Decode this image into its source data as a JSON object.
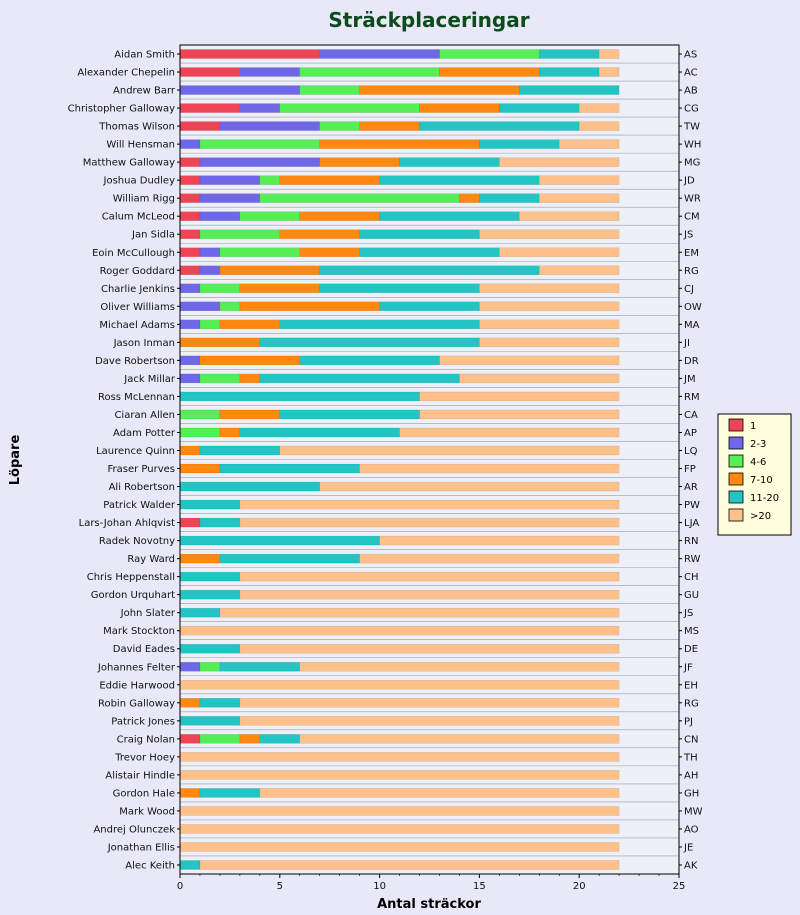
{
  "chart_data": {
    "type": "bar",
    "orientation": "horizontal",
    "stacked": true,
    "title": "Sträckplaceringar",
    "xlabel": "Antal sträckor",
    "ylabel": "Löpare",
    "xlim": [
      0,
      25
    ],
    "xticks": [
      "0",
      "5",
      "10",
      "15",
      "20",
      "25"
    ],
    "grid": true,
    "legend_position": "right",
    "categories": [
      "Aidan Smith",
      "Alexander Chepelin",
      "Andrew Barr",
      "Christopher Galloway",
      "Thomas Wilson",
      "Will Hensman",
      "Matthew Galloway",
      "Joshua Dudley",
      "William Rigg",
      "Calum McLeod",
      "Jan Sidla",
      "Eoin McCullough",
      "Roger Goddard",
      "Charlie Jenkins",
      "Oliver Williams",
      "Michael Adams",
      "Jason Inman",
      "Dave Robertson",
      "Jack Millar",
      "Ross McLennan",
      "Ciaran Allen",
      "Adam Potter",
      "Laurence Quinn",
      "Fraser Purves",
      "Ali Robertson",
      "Patrick Walder",
      "Lars-Johan Ahlqvist",
      "Radek Novotny",
      "Ray Ward",
      "Chris Heppenstall",
      "Gordon Urquhart",
      "John Slater",
      "Mark Stockton",
      "David Eades",
      "Johannes Felter",
      "Eddie Harwood",
      "Robin Galloway",
      "Patrick Jones",
      "Craig Nolan",
      "Trevor Hoey",
      "Alistair Hindle",
      "Gordon Hale",
      "Mark Wood",
      "Andrej Olunczek",
      "Jonathan Ellis",
      "Alec Keith"
    ],
    "right_labels": [
      "AS",
      "AC",
      "AB",
      "CG",
      "TW",
      "WH",
      "MG",
      "JD",
      "WR",
      "CM",
      "JS",
      "EM",
      "RG",
      "CJ",
      "OW",
      "MA",
      "JI",
      "DR",
      "JM",
      "RM",
      "CA",
      "AP",
      "LQ",
      "FP",
      "AR",
      "PW",
      "LJA",
      "RN",
      "RW",
      "CH",
      "GU",
      "JS",
      "MS",
      "DE",
      "JF",
      "EH",
      "RG",
      "PJ",
      "CN",
      "TH",
      "AH",
      "GH",
      "MW",
      "AO",
      "JE",
      "AK"
    ],
    "series": [
      {
        "name": "1",
        "color": "#ee4455",
        "values": [
          7,
          3,
          0,
          3,
          2,
          0,
          1,
          1,
          1,
          1,
          1,
          1,
          1,
          0,
          0,
          0,
          0,
          0,
          0,
          0,
          0,
          0,
          0,
          0,
          0,
          0,
          1,
          0,
          0,
          0,
          0,
          0,
          0,
          0,
          0,
          0,
          0,
          0,
          1,
          0,
          0,
          0,
          0,
          0,
          0,
          0
        ]
      },
      {
        "name": "2-3",
        "color": "#7066e8",
        "values": [
          6,
          3,
          6,
          2,
          5,
          1,
          6,
          3,
          3,
          2,
          0,
          1,
          1,
          1,
          2,
          1,
          0,
          1,
          1,
          0,
          0,
          0,
          0,
          0,
          0,
          0,
          0,
          0,
          0,
          0,
          0,
          0,
          0,
          0,
          1,
          0,
          0,
          0,
          0,
          0,
          0,
          0,
          0,
          0,
          0,
          0
        ]
      },
      {
        "name": "4-6",
        "color": "#55ee55",
        "values": [
          5,
          7,
          3,
          7,
          2,
          6,
          0,
          1,
          10,
          3,
          4,
          4,
          0,
          2,
          1,
          1,
          0,
          0,
          2,
          0,
          2,
          2,
          0,
          0,
          0,
          0,
          0,
          0,
          0,
          0,
          0,
          0,
          0,
          0,
          1,
          0,
          0,
          0,
          2,
          0,
          0,
          0,
          0,
          0,
          0,
          0
        ]
      },
      {
        "name": "7-10",
        "color": "#ff8811",
        "values": [
          0,
          5,
          8,
          4,
          3,
          8,
          4,
          5,
          1,
          4,
          4,
          3,
          5,
          4,
          7,
          3,
          4,
          5,
          1,
          0,
          3,
          1,
          1,
          2,
          0,
          0,
          0,
          0,
          2,
          0,
          0,
          0,
          0,
          0,
          0,
          0,
          1,
          0,
          1,
          0,
          0,
          1,
          0,
          0,
          0,
          0
        ]
      },
      {
        "name": "11-20",
        "color": "#22c4c4",
        "values": [
          3,
          3,
          5,
          4,
          8,
          4,
          5,
          8,
          3,
          7,
          6,
          7,
          11,
          8,
          5,
          10,
          11,
          7,
          10,
          12,
          7,
          8,
          4,
          7,
          7,
          3,
          2,
          10,
          7,
          3,
          3,
          2,
          0,
          3,
          4,
          0,
          2,
          3,
          2,
          0,
          0,
          3,
          0,
          0,
          0,
          1
        ]
      },
      {
        "name": ">20",
        "color": "#ffc08a",
        "values": [
          1,
          1,
          0,
          2,
          2,
          3,
          6,
          4,
          4,
          5,
          7,
          6,
          4,
          7,
          7,
          7,
          7,
          9,
          8,
          10,
          10,
          11,
          17,
          13,
          15,
          19,
          19,
          12,
          13,
          19,
          19,
          20,
          22,
          19,
          16,
          22,
          19,
          19,
          16,
          22,
          22,
          18,
          22,
          22,
          22,
          21
        ]
      }
    ]
  }
}
